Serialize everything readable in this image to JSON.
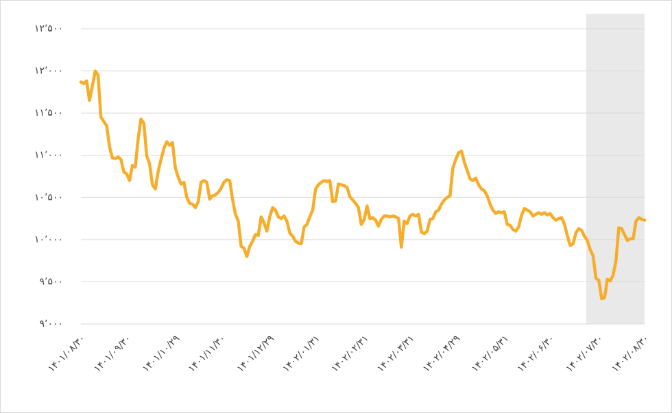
{
  "chart_data": {
    "type": "line",
    "categories": [
      "۱۴۰۱/۰۸/۳۰",
      null,
      null,
      null,
      null,
      null,
      null,
      null,
      null,
      null,
      null,
      null,
      null,
      null,
      null,
      null,
      "۱۴۰۱/۰۹/۳۰",
      null,
      null,
      null,
      null,
      null,
      null,
      null,
      null,
      null,
      null,
      null,
      null,
      null,
      null,
      null,
      null,
      "۱۴۰۱/۱۰/۲۹",
      null,
      null,
      null,
      null,
      null,
      null,
      null,
      null,
      null,
      null,
      null,
      null,
      null,
      null,
      null,
      "۱۴۰۱/۱۱/۳۰",
      null,
      null,
      null,
      null,
      null,
      null,
      null,
      null,
      null,
      null,
      null,
      null,
      null,
      null,
      null,
      null,
      "۱۴۰۱/۱۲/۲۹",
      null,
      null,
      null,
      null,
      null,
      null,
      null,
      null,
      null,
      null,
      null,
      null,
      null,
      null,
      null,
      "۱۴۰۲/۰۱/۳۱",
      null,
      null,
      null,
      null,
      null,
      null,
      null,
      null,
      null,
      null,
      null,
      null,
      null,
      null,
      null,
      null,
      "۱۴۰۲/۰۲/۳۱",
      null,
      null,
      null,
      null,
      null,
      null,
      null,
      null,
      null,
      null,
      null,
      null,
      null,
      null,
      null,
      "۱۴۰۲/۰۳/۳۱",
      null,
      null,
      null,
      null,
      null,
      null,
      null,
      null,
      null,
      null,
      null,
      null,
      null,
      null,
      null,
      "۱۴۰۲/۰۴/۲۹",
      null,
      null,
      null,
      null,
      null,
      null,
      null,
      null,
      null,
      null,
      null,
      null,
      null,
      null,
      null,
      null,
      "۱۴۰۲/۰۵/۳۱",
      null,
      null,
      null,
      null,
      null,
      null,
      null,
      null,
      null,
      null,
      null,
      null,
      null,
      null,
      null,
      "۱۴۰۲/۰۶/۳۰",
      null,
      null,
      null,
      null,
      null,
      null,
      null,
      null,
      null,
      null,
      null,
      null,
      null,
      null,
      null,
      null,
      "۱۴۰۲/۰۷/۳۰",
      null,
      null,
      null,
      null,
      null,
      null,
      null,
      null,
      null,
      null,
      null,
      null,
      null,
      null,
      null,
      "۱۴۰۲/۰۸/۳۰"
    ],
    "series": [
      {
        "color": "#f7ad2a",
        "values": [
          11870,
          11850,
          11880,
          11650,
          11820,
          12000,
          11950,
          11450,
          11400,
          11350,
          11100,
          10970,
          10960,
          10980,
          10950,
          10800,
          10780,
          10700,
          10880,
          10860,
          11200,
          11430,
          11380,
          10990,
          10900,
          10650,
          10600,
          10810,
          10950,
          11080,
          11160,
          11120,
          11150,
          10850,
          10740,
          10660,
          10680,
          10500,
          10430,
          10420,
          10380,
          10450,
          10680,
          10700,
          10680,
          10480,
          10520,
          10530,
          10560,
          10610,
          10680,
          10710,
          10700,
          10480,
          10300,
          10220,
          9920,
          9900,
          9800,
          9920,
          9980,
          10060,
          10050,
          10270,
          10200,
          10100,
          10270,
          10380,
          10350,
          10270,
          10250,
          10280,
          10220,
          10080,
          10040,
          9980,
          9960,
          9950,
          10150,
          10180,
          10270,
          10350,
          10600,
          10650,
          10680,
          10700,
          10690,
          10700,
          10450,
          10460,
          10660,
          10650,
          10640,
          10620,
          10510,
          10470,
          10430,
          10380,
          10180,
          10240,
          10400,
          10250,
          10260,
          10230,
          10160,
          10240,
          10280,
          10280,
          10270,
          10280,
          10270,
          10250,
          9910,
          10220,
          10190,
          10280,
          10300,
          10280,
          10300,
          10090,
          10070,
          10100,
          10240,
          10250,
          10330,
          10350,
          10420,
          10470,
          10500,
          10520,
          10850,
          10950,
          11030,
          11050,
          10920,
          10820,
          10720,
          10700,
          10730,
          10650,
          10600,
          10580,
          10520,
          10420,
          10350,
          10310,
          10330,
          10320,
          10330,
          10180,
          10170,
          10120,
          10100,
          10150,
          10290,
          10370,
          10350,
          10330,
          10280,
          10300,
          10320,
          10300,
          10320,
          10290,
          10310,
          10260,
          10230,
          10250,
          10260,
          10180,
          10050,
          9930,
          9950,
          10080,
          10130,
          10110,
          10040,
          9990,
          9880,
          9810,
          9540,
          9520,
          9300,
          9310,
          9530,
          9510,
          9580,
          9750,
          10140,
          10130,
          10060,
          9990,
          10010,
          10010,
          10220,
          10260,
          10240,
          10230
        ]
      }
    ],
    "ylim": [
      9000,
      12500
    ],
    "yticks": [
      {
        "value": 9000,
        "label": "۹٬۰۰۰"
      },
      {
        "value": 9500,
        "label": "۹٬۵۰۰"
      },
      {
        "value": 10000,
        "label": "۱۰٬۰۰۰"
      },
      {
        "value": 10500,
        "label": "۱۰٬۵۰۰"
      },
      {
        "value": 11000,
        "label": "۱۱٬۰۰۰"
      },
      {
        "value": 11500,
        "label": "۱۱٬۵۰۰"
      },
      {
        "value": 12000,
        "label": "۱۲٬۰۰۰"
      },
      {
        "value": 12500,
        "label": "۱۲٬۵۰۰"
      }
    ],
    "grid": true
  }
}
